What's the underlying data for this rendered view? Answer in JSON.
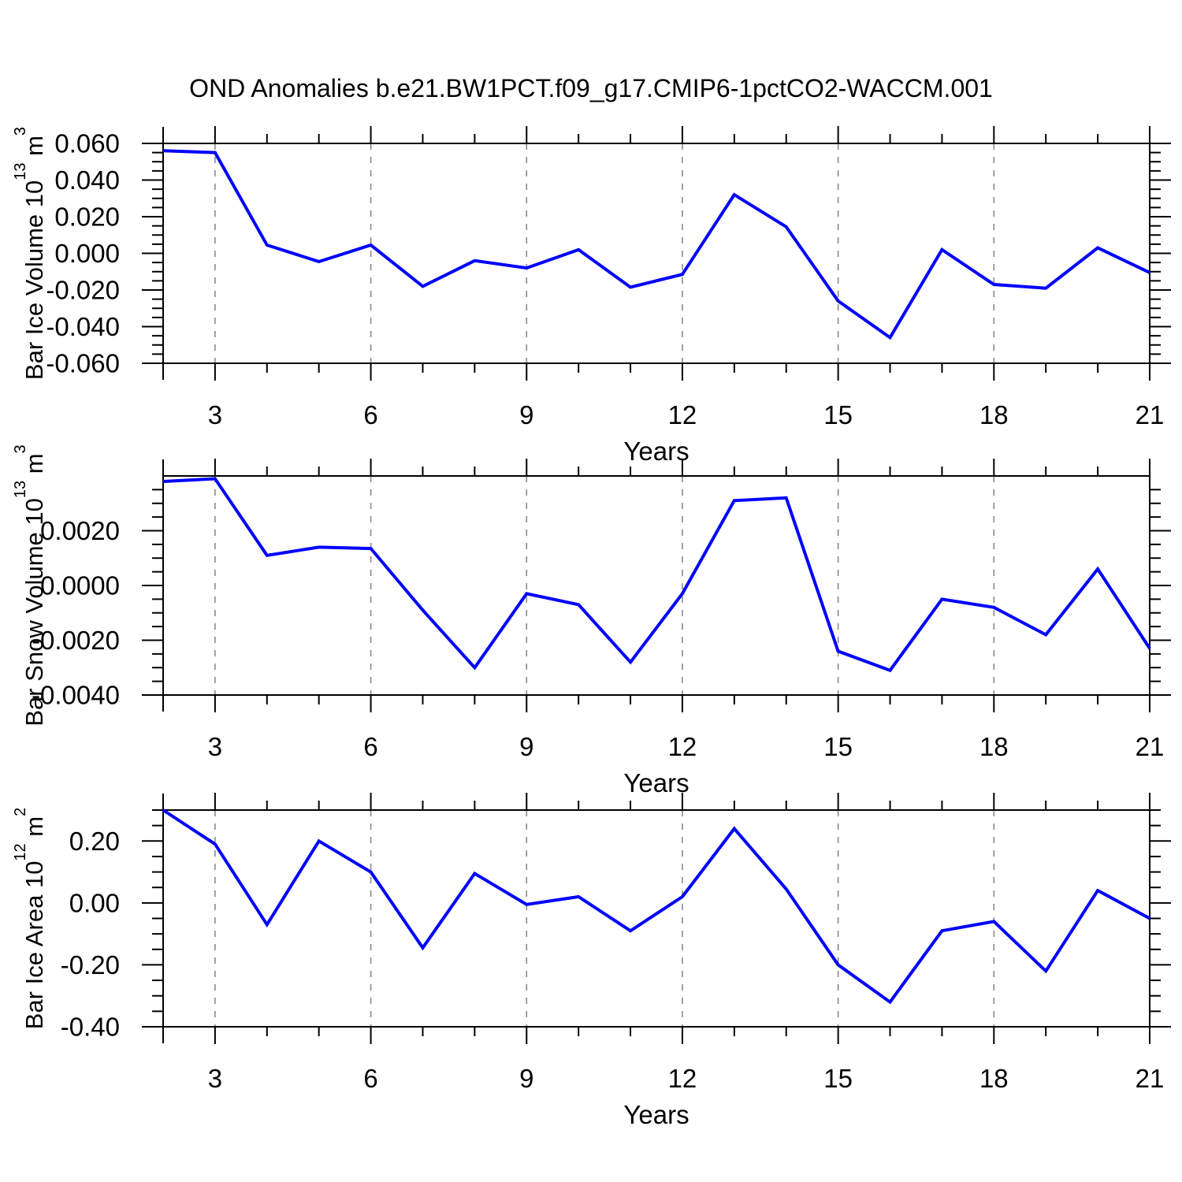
{
  "title": "OND Anomalies b.e21.BW1PCT.f09_g17.CMIP6-1pctCO2-WACCM.001",
  "colors": {
    "background": "#ffffff",
    "line": "#0000ff",
    "axis": "#000000",
    "grid": "#8a8a8a",
    "text": "#000000"
  },
  "chart_data": [
    {
      "type": "line",
      "name": "bar-ice-volume",
      "ylabel_parts": [
        {
          "t": "Bar Ice Volume 10"
        },
        {
          "t": "13",
          "sup": true
        },
        {
          "t": " m"
        },
        {
          "t": "3",
          "sup": true
        }
      ],
      "xlabel": "Years",
      "x": [
        2,
        3,
        4,
        5,
        6,
        7,
        8,
        9,
        10,
        11,
        12,
        13,
        14,
        15,
        16,
        17,
        18,
        19,
        20,
        21
      ],
      "values": [
        0.056,
        0.055,
        0.0045,
        -0.0045,
        0.0045,
        -0.018,
        -0.004,
        -0.008,
        0.002,
        -0.0185,
        -0.0115,
        0.032,
        0.0145,
        -0.026,
        -0.046,
        0.002,
        -0.017,
        -0.019,
        0.003,
        -0.0105
      ],
      "xlim": [
        2,
        21
      ],
      "ylim": [
        -0.06,
        0.06
      ],
      "xticks": [
        3,
        6,
        9,
        12,
        15,
        18,
        21
      ],
      "xminor_step": 1,
      "grid_x": [
        3,
        6,
        9,
        12,
        15,
        18
      ],
      "yticks": [
        {
          "v": 0.06,
          "label": "0.060"
        },
        {
          "v": 0.04,
          "label": "0.040"
        },
        {
          "v": 0.02,
          "label": "0.020"
        },
        {
          "v": 0.0,
          "label": "0.000"
        },
        {
          "v": -0.02,
          "label": "-0.020"
        },
        {
          "v": -0.04,
          "label": "-0.040"
        },
        {
          "v": -0.06,
          "label": "-0.060"
        }
      ],
      "yminor_step": 0.005,
      "ymax_tick": true,
      "grid": "x-dashed",
      "legend": "none"
    },
    {
      "type": "line",
      "name": "bar-snow-volume",
      "ylabel_parts": [
        {
          "t": "Bar Snow Volume 10"
        },
        {
          "t": "13",
          "sup": true
        },
        {
          "t": " m"
        },
        {
          "t": "3",
          "sup": true
        }
      ],
      "xlabel": "Years",
      "x": [
        2,
        3,
        4,
        5,
        6,
        7,
        8,
        9,
        10,
        11,
        12,
        13,
        14,
        15,
        16,
        17,
        18,
        19,
        20,
        21
      ],
      "values": [
        0.0038,
        0.0039,
        0.0011,
        0.0014,
        0.00135,
        -0.0009,
        -0.003,
        -0.0003,
        -0.0007,
        -0.0028,
        -0.0003,
        0.0031,
        0.0032,
        -0.0024,
        -0.0031,
        -0.0005,
        -0.0008,
        -0.0018,
        0.0006,
        -0.0023
      ],
      "xlim": [
        2,
        21
      ],
      "ylim": [
        -0.004,
        0.004
      ],
      "xticks": [
        3,
        6,
        9,
        12,
        15,
        18,
        21
      ],
      "xminor_step": 1,
      "grid_x": [
        3,
        6,
        9,
        12,
        15,
        18
      ],
      "yticks": [
        {
          "v": 0.002,
          "label": "0.0020"
        },
        {
          "v": 0.0,
          "label": "0.0000"
        },
        {
          "v": -0.002,
          "label": "-0.0020"
        },
        {
          "v": -0.004,
          "label": "-0.0040"
        }
      ],
      "yminor_step": 0.0005,
      "ymax_tick": false,
      "grid": "x-dashed",
      "legend": "none"
    },
    {
      "type": "line",
      "name": "bar-ice-area",
      "ylabel_parts": [
        {
          "t": "Bar Ice Area 10"
        },
        {
          "t": "12",
          "sup": true
        },
        {
          "t": " m"
        },
        {
          "t": "2",
          "sup": true
        }
      ],
      "xlabel": "Years",
      "x": [
        2,
        3,
        4,
        5,
        6,
        7,
        8,
        9,
        10,
        11,
        12,
        13,
        14,
        15,
        16,
        17,
        18,
        19,
        20,
        21
      ],
      "values": [
        0.3,
        0.19,
        -0.07,
        0.2,
        0.1,
        -0.145,
        0.095,
        -0.005,
        0.02,
        -0.09,
        0.02,
        0.24,
        0.045,
        -0.2,
        -0.32,
        -0.09,
        -0.06,
        -0.22,
        0.04,
        -0.05
      ],
      "xlim": [
        2,
        21
      ],
      "ylim": [
        -0.4,
        0.3
      ],
      "xticks": [
        3,
        6,
        9,
        12,
        15,
        18,
        21
      ],
      "xminor_step": 1,
      "grid_x": [
        3,
        6,
        9,
        12,
        15,
        18
      ],
      "yticks": [
        {
          "v": 0.2,
          "label": "0.20"
        },
        {
          "v": 0.0,
          "label": "0.00"
        },
        {
          "v": -0.2,
          "label": "-0.20"
        },
        {
          "v": -0.4,
          "label": "-0.40"
        }
      ],
      "yminor_step": 0.05,
      "ymax_tick": true,
      "grid": "x-dashed",
      "legend": "none"
    }
  ]
}
